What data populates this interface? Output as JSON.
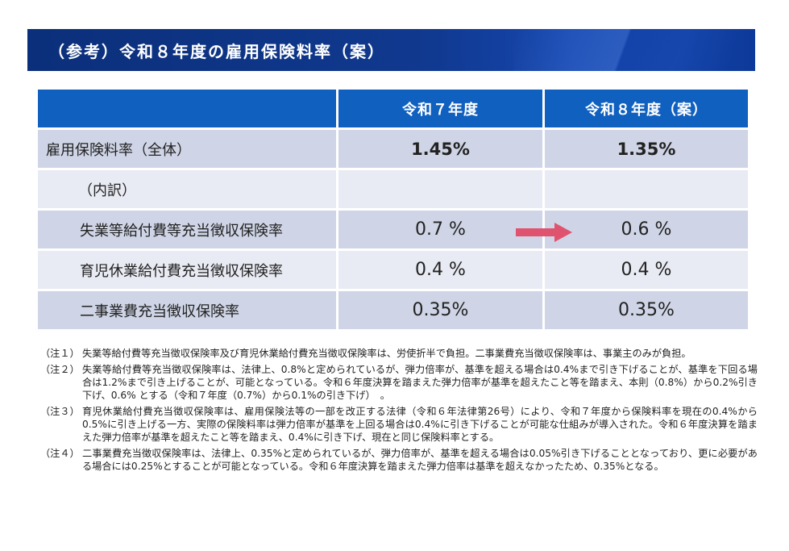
{
  "header": {
    "title": "（参考）令和８年度の雇用保険料率（案）"
  },
  "table": {
    "columns": [
      "",
      "令和７年度",
      "令和８年度（案）"
    ],
    "rows": [
      {
        "label": "雇用保険料率（全体）",
        "v1": "1.45%",
        "v2": "1.35%"
      },
      {
        "label": "（内訳）",
        "v1": "",
        "v2": ""
      },
      {
        "label": "失業等給付費等充当徴収保険率",
        "v1": "0.7 %",
        "v2": "0.6 %"
      },
      {
        "label": "育児休業給付費充当徴収保険率",
        "v1": "0.4 %",
        "v2": "0.4 %"
      },
      {
        "label": "二事業費充当徴収保険率",
        "v1": "0.35%",
        "v2": "0.35%"
      }
    ],
    "arrow_color": "#e0536f",
    "header_color": "#1060c0"
  },
  "notes": [
    {
      "label": "（注１）",
      "text": "失業等給付費等充当徴収保険率及び育児休業給付費充当徴収保険率は、労使折半で負担。二事業費充当徴収保険率は、事業主のみが負担。"
    },
    {
      "label": "（注２）",
      "text": "失業等給付費等充当徴収保険率は、法律上、0.8%と定められているが、弾力倍率が、基準を超える場合は0.4%まで引き下げることが、基準を下回る場合は1.2%まで引き上げることが、可能となっている。令和６年度決算を踏まえた弾力倍率が基準を超えたこと等を踏まえ、本則（0.8%）から0.2%引き下げ、0.6% とする（令和７年度（0.7%）から0.1%の引き下げ）　。"
    },
    {
      "label": "（注３）",
      "text": "育児休業給付費充当徴収保険率は、雇用保険法等の一部を改正する法律（令和６年法律第26号）により、令和７年度から保険料率を現在の0.4%から0.5%に引き上げる一方、実際の保険料率は弾力倍率が基準を上回る場合は0.4%に引き下げることが可能な仕組みが導入された。令和６年度決算を踏まえた弾力倍率が基準を超えたこと等を踏まえ、0.4%に引き下げ、現在と同じ保険料率とする。"
    },
    {
      "label": "（注４）",
      "text": "二事業費充当徴収保険率は、法律上、0.35%と定められているが、弾力倍率が、基準を超える場合は0.05%引き下げることとなっており、更に必要がある場合には0.25%とすることが可能となっている。令和６年度決算を踏まえた弾力倍率は基準を超えなかったため、0.35%となる。"
    }
  ]
}
